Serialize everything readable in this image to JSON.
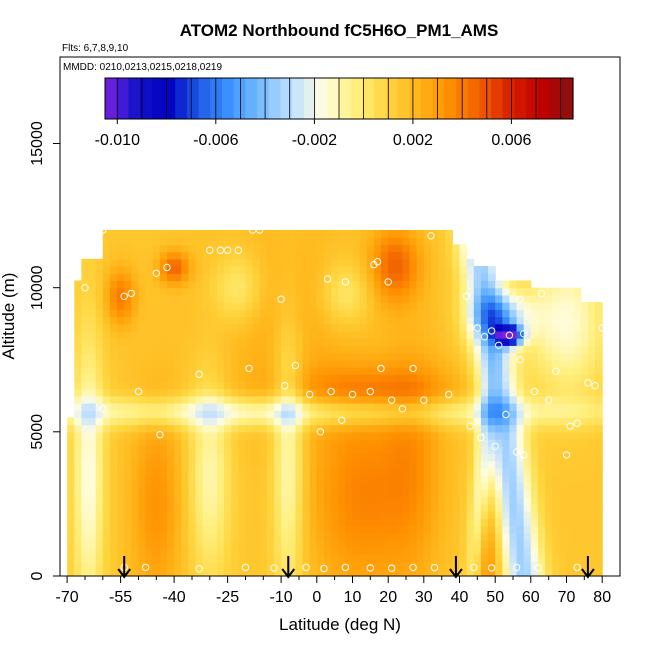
{
  "chart_data": {
    "type": "heatmap",
    "title": "ATOM2 Northbound fC5H6O_PM1_AMS",
    "subtitle_flights": "Flts: 6,7,8,9,10",
    "subtitle_dates": "MMDD: 0210,0213,0215,0218,0219",
    "xlabel": "Latitude (deg N)",
    "ylabel": "Altitude (m)",
    "xlim": [
      -72,
      85
    ],
    "ylim": [
      0,
      18000
    ],
    "x_ticks": [
      -70,
      -55,
      -40,
      -25,
      -10,
      0,
      10,
      20,
      30,
      40,
      50,
      60,
      70,
      80
    ],
    "x_minor_ticks": [
      -65,
      -60,
      -50,
      -45,
      -35,
      -30,
      -20,
      -15,
      -5,
      5,
      15,
      25,
      35,
      45,
      55,
      65,
      75
    ],
    "y_ticks": [
      0,
      5000,
      10000,
      15000
    ],
    "colorbar": {
      "range": [
        -0.0105,
        0.0085
      ],
      "tick_values": [
        -0.01,
        -0.006,
        -0.002,
        0.002,
        0.006
      ],
      "tick_labels": [
        "-0.010",
        "-0.006",
        "-0.002",
        "0.002",
        "0.006"
      ],
      "colors": [
        "#7a22e0",
        "#1414c8",
        "#0000c0",
        "#1e5ae6",
        "#3c94ff",
        "#78bcff",
        "#bfe0ff",
        "#fffde0",
        "#fff080",
        "#ffd640",
        "#ffb61a",
        "#ff9000",
        "#f06000",
        "#d82000",
        "#c00000",
        "#8a1010"
      ]
    },
    "arrow_latitudes": [
      -54,
      -8,
      39,
      76
    ],
    "observation_points": [
      {
        "lat": -54,
        "alt": 300
      },
      {
        "lat": -48,
        "alt": 300
      },
      {
        "lat": -33,
        "alt": 250
      },
      {
        "lat": -20,
        "alt": 300
      },
      {
        "lat": -12,
        "alt": 280
      },
      {
        "lat": -3,
        "alt": 300
      },
      {
        "lat": 2,
        "alt": 260
      },
      {
        "lat": 8,
        "alt": 300
      },
      {
        "lat": 15,
        "alt": 280
      },
      {
        "lat": 21,
        "alt": 270
      },
      {
        "lat": 27,
        "alt": 300
      },
      {
        "lat": 33,
        "alt": 290
      },
      {
        "lat": 44,
        "alt": 300
      },
      {
        "lat": 49,
        "alt": 280
      },
      {
        "lat": 56,
        "alt": 300
      },
      {
        "lat": 62,
        "alt": 280
      },
      {
        "lat": 73,
        "alt": 300
      },
      {
        "lat": -44,
        "alt": 4900
      },
      {
        "lat": -60,
        "alt": 5800
      },
      {
        "lat": -50,
        "alt": 6400
      },
      {
        "lat": -33,
        "alt": 7000
      },
      {
        "lat": -19,
        "alt": 7200
      },
      {
        "lat": -9,
        "alt": 6600
      },
      {
        "lat": -6,
        "alt": 7300
      },
      {
        "lat": -2,
        "alt": 6300
      },
      {
        "lat": 1,
        "alt": 5000
      },
      {
        "lat": 4,
        "alt": 6400
      },
      {
        "lat": 7,
        "alt": 5400
      },
      {
        "lat": 10,
        "alt": 6300
      },
      {
        "lat": 15,
        "alt": 6400
      },
      {
        "lat": 18,
        "alt": 7200
      },
      {
        "lat": 21,
        "alt": 6100
      },
      {
        "lat": 24,
        "alt": 5800
      },
      {
        "lat": 27,
        "alt": 7200
      },
      {
        "lat": 30,
        "alt": 6100
      },
      {
        "lat": 37,
        "alt": 6300
      },
      {
        "lat": 43,
        "alt": 5200
      },
      {
        "lat": 46,
        "alt": 4800
      },
      {
        "lat": 50,
        "alt": 4500
      },
      {
        "lat": 53,
        "alt": 5600
      },
      {
        "lat": 58,
        "alt": 4200
      },
      {
        "lat": 61,
        "alt": 6400
      },
      {
        "lat": 65,
        "alt": 6100
      },
      {
        "lat": 70,
        "alt": 4200
      },
      {
        "lat": 71,
        "alt": 5200
      },
      {
        "lat": 76,
        "alt": 6700
      },
      {
        "lat": 78,
        "alt": 6600
      },
      {
        "lat": 67,
        "alt": 7100
      },
      {
        "lat": 57,
        "alt": 7500
      },
      {
        "lat": 51,
        "alt": 8000
      },
      {
        "lat": 47,
        "alt": 8300
      },
      {
        "lat": 45,
        "alt": 8600
      },
      {
        "lat": 49,
        "alt": 8500
      },
      {
        "lat": 54,
        "alt": 8350
      },
      {
        "lat": 58,
        "alt": 8400
      },
      {
        "lat": 57,
        "alt": 9600
      },
      {
        "lat": 63,
        "alt": 9800
      },
      {
        "lat": 80,
        "alt": 8600
      },
      {
        "lat": 42,
        "alt": 9700
      },
      {
        "lat": 20,
        "alt": 10200
      },
      {
        "lat": 16,
        "alt": 10800
      },
      {
        "lat": 8,
        "alt": 10200
      },
      {
        "lat": 3,
        "alt": 10300
      },
      {
        "lat": -10,
        "alt": 9600
      },
      {
        "lat": -45,
        "alt": 10500
      },
      {
        "lat": -42,
        "alt": 10700
      },
      {
        "lat": -54,
        "alt": 9700
      },
      {
        "lat": -52,
        "alt": 9800
      },
      {
        "lat": -65,
        "alt": 10000
      },
      {
        "lat": -60,
        "alt": 12000
      },
      {
        "lat": -30,
        "alt": 11300
      },
      {
        "lat": -27,
        "alt": 11300
      },
      {
        "lat": -25,
        "alt": 11300
      },
      {
        "lat": -22,
        "alt": 11300
      },
      {
        "lat": -18,
        "alt": 12000
      },
      {
        "lat": -16,
        "alt": 12000
      },
      {
        "lat": 17,
        "alt": 10900
      },
      {
        "lat": 32,
        "alt": 11800
      },
      {
        "lat": 44,
        "alt": 11800
      },
      {
        "lat": 73,
        "alt": 5300
      },
      {
        "lat": 56,
        "alt": 4300
      }
    ]
  }
}
